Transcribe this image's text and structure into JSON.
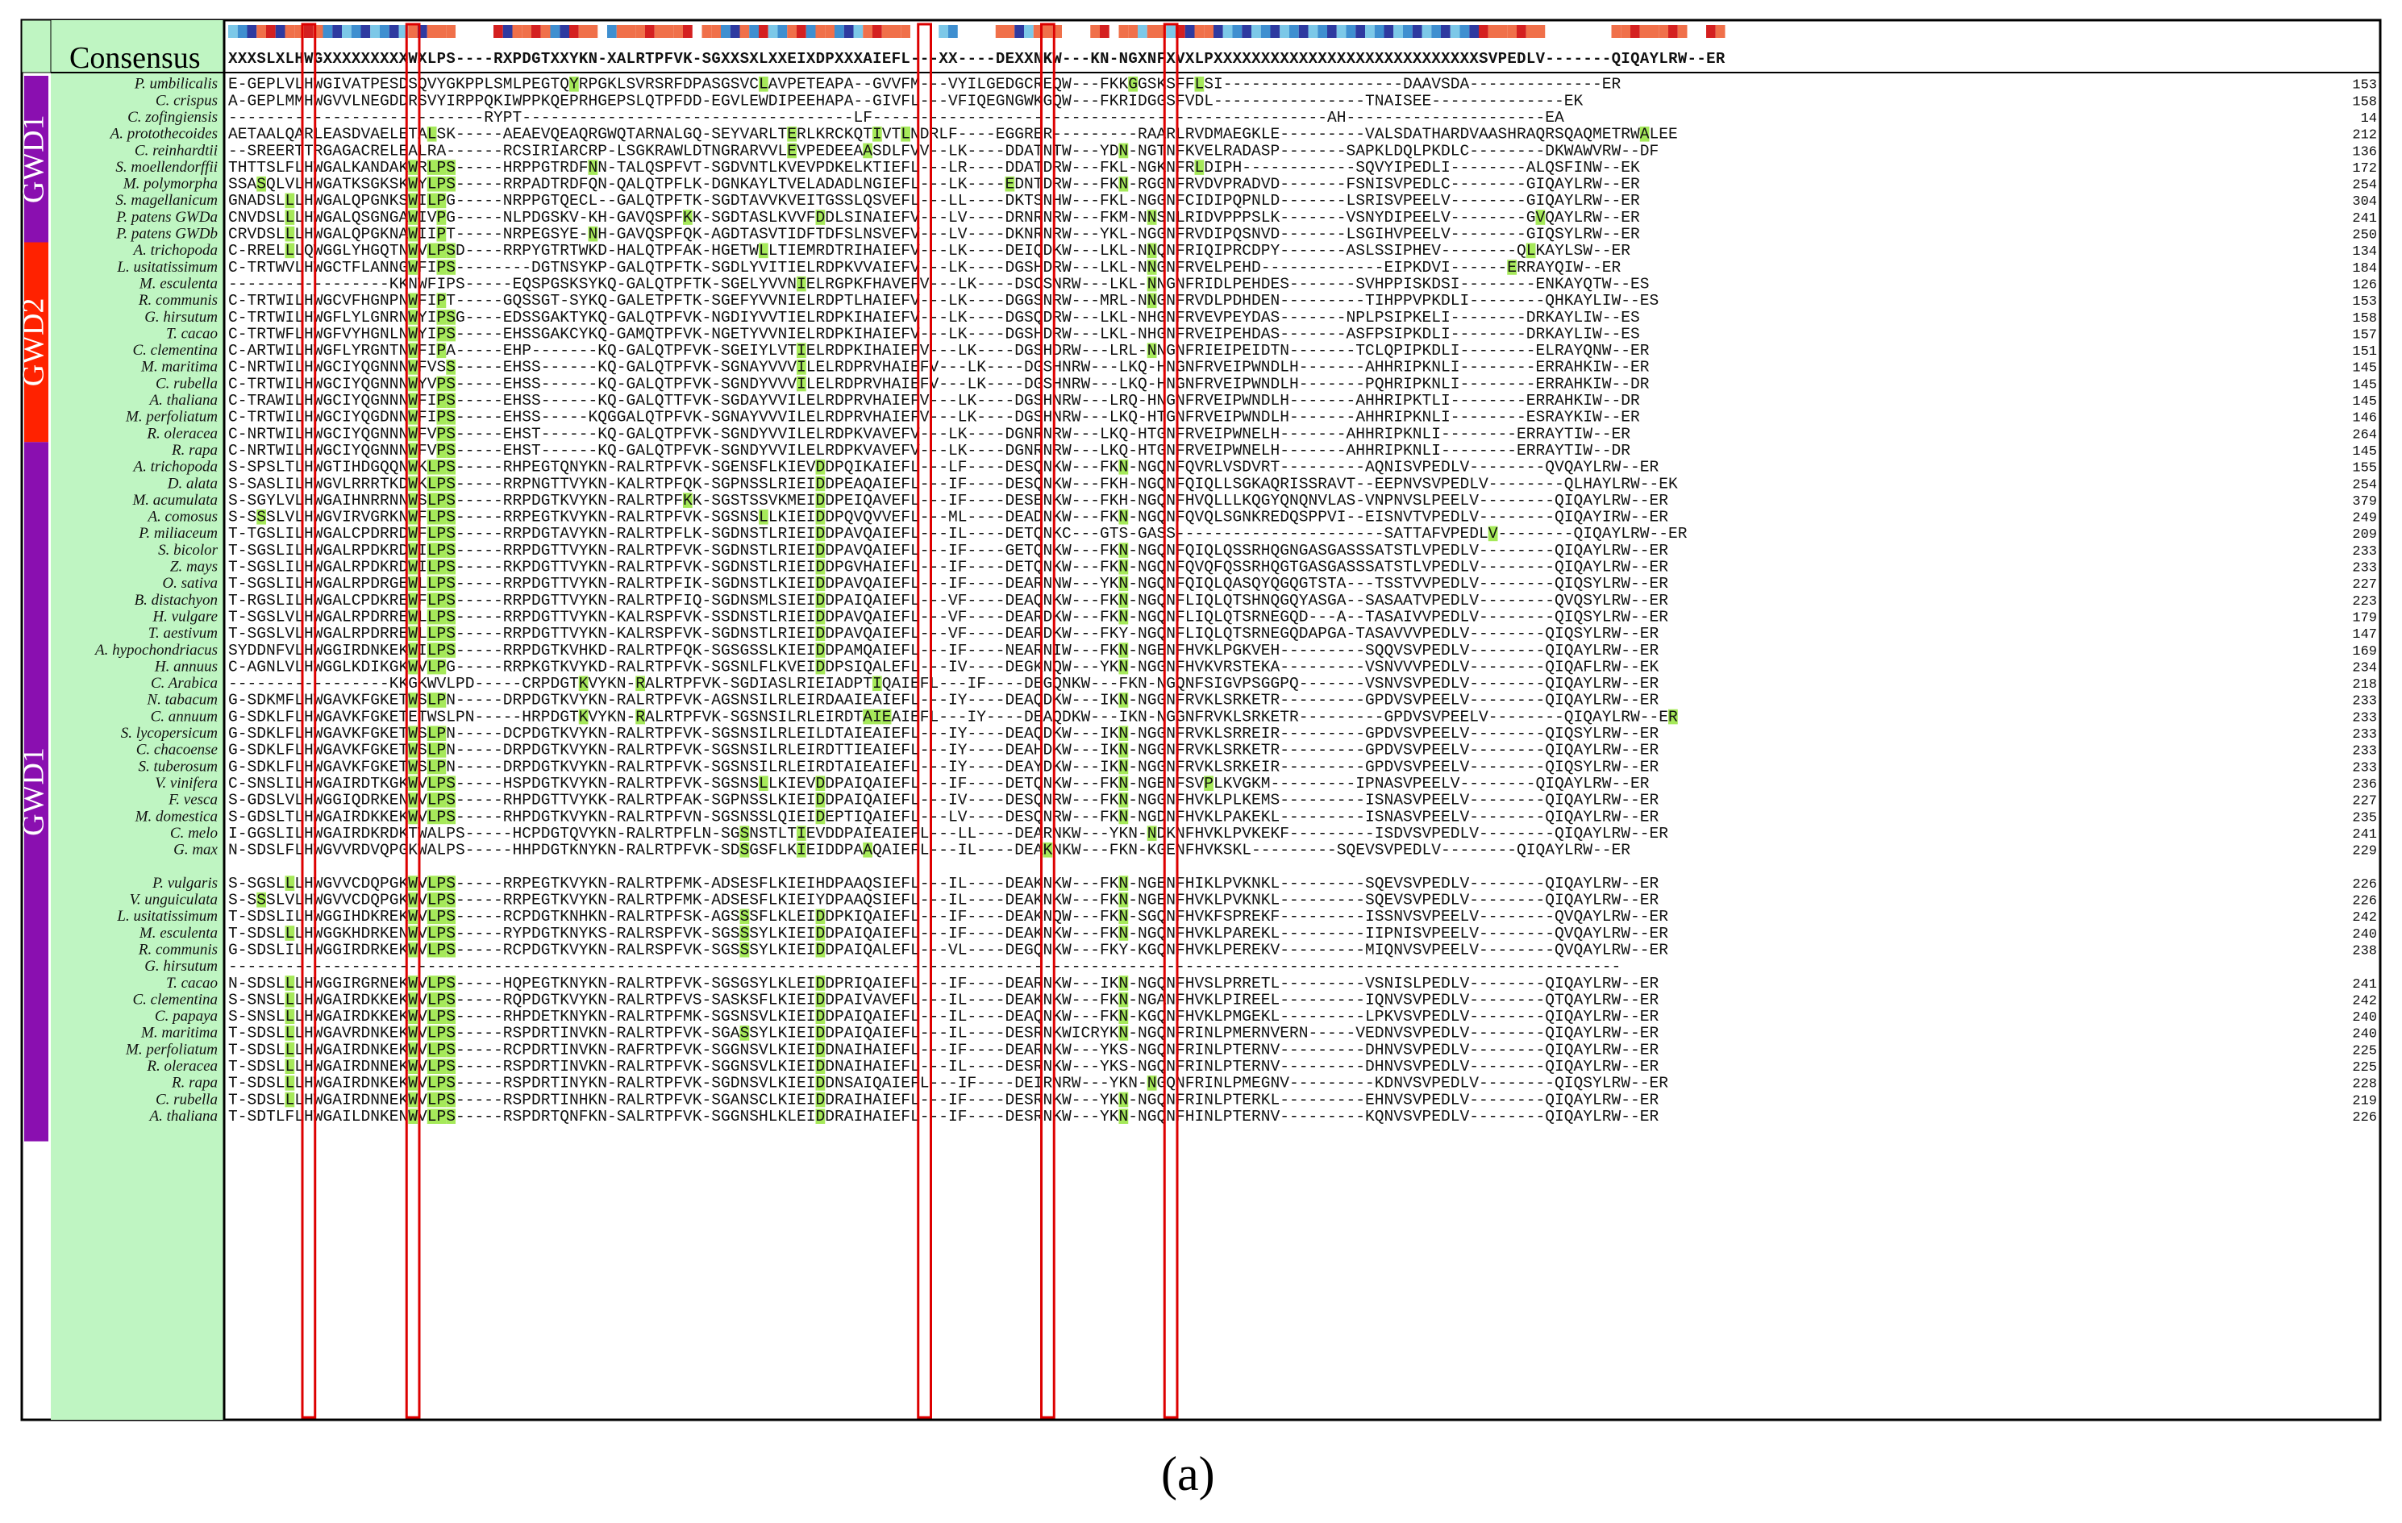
{
  "figure": {
    "consensus_label": "Consensus",
    "consensus_sequence": "XXXSLXLHWGXXXXXXXXXWXLPS----RXPDGTXXYKN-XALRTPFVK-SGXXSXLXXEIXDPXXXAIEFL---XX----DEXXNKW---KN-NGXNFXVXLPXXXXXXXXXXXXXXXXXXXXXXXXXXXXSVPEDLV-------QIQAYLRW--ER",
    "panel_label": "(a)",
    "groups": [
      {
        "label": "GWD1",
        "color": "#8a0fb0",
        "first_row": 0,
        "last_row": 9
      },
      {
        "label": "GWD2",
        "color": "#ff2200",
        "first_row": 10,
        "last_row": 21
      },
      {
        "label": "GWD1",
        "color": "#8a0fb0",
        "first_row": 22,
        "last_row": 63
      }
    ],
    "colors": {
      "species_panel": "#bff5c2",
      "highlight": "#a6e95a",
      "conservation_box": "#dd0000",
      "dark_blue": "#2e3aa0",
      "light_blue": "#7cc8e8",
      "mid_blue": "#3f8fd0",
      "orange": "#f0704a",
      "red": "#d42020"
    },
    "rows": [
      {
        "species": "P. umbilicalis",
        "seq": "E-GEPLVLHWGIVATPESDSQVYGKPPLSMLPEGTQYRPGKLSVRSRFDPASGSVCLAVPETEAPA--GVVFM---VYILGEDGCREQW---FKKGGSKSFFLSI-------------------DAAVSDA--------------ER",
        "len": "153"
      },
      {
        "species": "C. crispus",
        "seq": "A-GEPLMMHWGVVLNEGDDRSVYIRPPQKIWPPKQEPRHGEPSLQTPFDD-EGVLEWDIPEEHAPA--GIVFL---VFIQEGNGWKGQW---FKRIDGGSFVDL----------------TNAISEE--------------EK",
        "len": "158"
      },
      {
        "species": "C. zofingiensis",
        "seq": "---------------------------RYPT-----------------------------------LF------------------------------------------------AH---------------------EA",
        "len": "14"
      },
      {
        "species": "A. protothecoides",
        "seq": "AETAALQARLEASDVAELETALSK-----AEAEVQEAQRGWQTARNALGQ-SEYVARLTERLKRCKQTIVTLNDRLF----EGGRER---------RAARLRVDMAEGKLE---------VALSDATHARDVAASHRAQRSQAQMETRWALEE",
        "len": "212"
      },
      {
        "species": "C. reinhardtii",
        "seq": "--SREERTTRGAGACRELEALRA------RCSIRIARCRP-LSGKRAWLDTNGRARVVLEVPEDEEAASDLFVV--LK----DDATNTW---YDN-NGTNFKVELRADASP-------SAPKLDQLPKDLC--------DKWAWVRW--DF",
        "len": "136"
      },
      {
        "species": "S. moellendorffii",
        "seq": "THTTSLFLHWGALKANDAKWRLPS-----HRPPGTRDFNN-TALQSPFVT-SGDVNTLKVEVPDKELKTIEFL---LR----DDATDRW---FKL-NGKNFRLDIPH------------SQVYIPEDLI--------ALQSFINW--EK",
        "len": "172"
      },
      {
        "species": "M. polymorpha",
        "seq": "SSASQLVLHWGATKSGKSKWYLPS-----RRPADTRDFQN-QALQTPFLK-DGNKAYLTVELADADLNGIEFL---LK----EDNTDRW---FKN-RGGNFRVDVPRADVD-------FSNISVPEDLC--------GIQAYLRW--ER",
        "len": "254"
      },
      {
        "species": "S. magellanicum",
        "seq": "GNADSLLLHWGALQPGNKSWILPG-----NRPPGTQECL--GALQTPFTK-SGDTAVVKVEITGSSLQSVEFL---LL----DKTSNHW---FKL-NGGNFCIDIPQPNLD-------LSRISVPEELV--------GIQAYLRW--ER",
        "len": "304"
      },
      {
        "species": "P. patens GWDa",
        "seq": "CNVDSLLLHWGALQSGNGAWIVPG-----NLPDGSKV-KH-GAVQSPFKK-SGDTASLKVVFDDLSINAIEFV---LV----DRNRNRW---FKM-NNSNLRIDVPPPSLK-------VSNYDIPEELV--------GVQAYLRW--ER",
        "len": "241"
      },
      {
        "species": "P. patens GWDb",
        "seq": "CRVDSLLLHWGALQPGKNAWIIPT-----NRPEGSYE-NH-GAVQSPFQK-AGDTASVTIDFTDFSLNSVEFV---LV----DKNRNRW---YKL-NGGNFRVDIPQSNVD-------LSGIHVPEELV--------GIQSYLRW--ER",
        "len": "250"
      },
      {
        "species": "A. trichopoda",
        "seq": "C-RRELLLQWGGLYHGQTNWVLPSD----RRPYGTRTWKD-HALQTPFAK-HGETWLLTIEMRDTRIHAIEFV---LK----DEIQDKW---LKL-NNQNFRIQIPRCDPY-------ASLSSIPHEV--------QLKAYLSW--ER",
        "len": "134"
      },
      {
        "species": "L. usitatissimum",
        "seq": "C-TRTWVLHWGCTFLANNGWFIPS--------DGTNSYKP-GALQTPFTK-SGDLYVITIELRDPKVVAIEFV---LK----DGSHDRW---LKL-NNGNFRVELPEHD-------------EIPKDVI------ERRAYQIW--ER",
        "len": "184"
      },
      {
        "species": "M. esculenta",
        "seq": "-----------------KKNWFIPS-----EQSPGSKSYKQ-GALQTPFTK-SGELYVVNIELRGPKFHAVEFV---LK----DSCSNRW---LKL-NNGNFRIDLPEHDES-------SVHPPISKDSI--------ENKAYQTW--ES",
        "len": "126"
      },
      {
        "species": "R. communis",
        "seq": "C-TRTWILHWGCVFHGNPNWFIPT-----GQSSGT-SYKQ-GALETPFTK-SGEFYVVNIELRDPTLHAIEFV---LK----DGGSNRW---MRL-NNGNFRVDLPDHDEN---------TIHPPVPKDLI--------QHKAYLIW--ES",
        "len": "153"
      },
      {
        "species": "G. hirsutum",
        "seq": "C-TRTWILHWGFLYLGNRNWYIPSG----EDSSGAKTYKQ-GALQTPFVK-NGDIYVVTIELRDPKIHAIEFV---LK----DGSQDRW---LKL-NHGNFRVEVPEYDAS-------NPLPSIPKELI--------DRKAYLIW--ES",
        "len": "158"
      },
      {
        "species": "T. cacao",
        "seq": "C-TRTWFLHWGFVYHGNLNWYIPS-----EHSSGAKCYKQ-GAMQTPFVK-NGETYVVNIELRDPKIHAIEFV---LK----DGSHDRW---LKL-NHGNFRVEIPEHDAS-------ASFPSIPKDLI--------DRKAYLIW--ES",
        "len": "157"
      },
      {
        "species": "C. clementina",
        "seq": "C-ARTWILHWGFLYRGNTNWFIPA-----EHP-------KQ-GALQTPFVK-SGEIYLVTIELRDPKIHAIEFV---LK----DGSHDRW---LRL-NNGNFRIEIPEIDTN-------TCLQPIPKDLI--------ELRAYQNW--ER",
        "len": "151"
      },
      {
        "species": "M. maritima",
        "seq": "C-NRTWILHWGCIYQGNNNWFVSS-----EHSS------KQ-GALQTPFVK-SGNAYVVVILELRDPRVHAIEFV---LK----DGSHNRW---LKQ-HNGNFRVEIPWNDLH-------AHHRIPKNLI--------ERRAHKIW--ER",
        "len": "145"
      },
      {
        "species": "C. rubella",
        "seq": "C-TRTWILHWGCIYQGNNNWYVPS-----EHSS------KQ-GALQTPFVK-SGNDYVVVILELRDPRVHAIEFV---LK----DGSHNRW---LKQ-HNGNFRVEIPWNDLH-------PQHRIPKNLI--------ERRAHKIW--DR",
        "len": "145"
      },
      {
        "species": "A. thaliana",
        "seq": "C-TRAWILHWGCIYQGNNNWFIPS-----EHSS------KQ-GALQTTFVK-SGDAYVVILELRDPRVHAIEFV---LK----DGSHNRW---LRQ-HNGNFRVEIPWNDLH-------AHHRIPKTLI--------ERRAHKIW--DR",
        "len": "145"
      },
      {
        "species": "M. perfoliatum",
        "seq": "C-TRTWILHWGCIYQGDNNWFIPS-----EHSS-----KQGGALQTPFVK-SGNAYVVVILELRDPRVHAIEFV---LK----DGSHNRW---LKQ-HTGNFRVEIPWNDLH-------AHHRIPKNLI--------ESRAYKIW--ER",
        "len": "146"
      },
      {
        "species": "R. oleracea",
        "seq": "C-NRTWILHWGCIYQGNNNWFVPS-----EHST------KQ-GALQTPFVK-SGNDYVVILELRDPKVAVEFV---LK----DGNRNRW---LKQ-HTGNFRVEIPWNELH-------AHHRIPKNLI--------ERRAYTIW--ER",
        "len": "264"
      },
      {
        "species": "R. rapa",
        "seq": "C-NRTWILHWGCIYQGNNNWFVPS-----EHST------KQ-GALQTPFVK-SGNDYVVILELRDPKVAVEFV---LK----DGNRNRW---LKQ-HTGNFRVEIPWNELH-------AHHRIPKNLI--------ERRAYTIW--DR",
        "len": "145"
      },
      {
        "species": "A. trichopoda",
        "seq": "S-SPSLTLHWGTIHDGQQNWKLPS-----RHPEGTQNYKN-RALRTPFVK-SGENSFLKIEVDDPQIKAIEFL---LF----DESQNKW---FKN-NGQNFQVRLVSDVRT---------AQNISVPEDLV--------QVQAYLRW--ER",
        "len": "155"
      },
      {
        "species": "D. alata",
        "seq": "S-SASLILHWGVLRRRTKDWKLPS-----RRPNGTTVYKN-KALRTPFQK-SGPNSSLRIEIDDPEAQAIEFL---IF----DESQNKW---FKH-NGQNFQIQLLSGKAQRISSRAVT--EEPNVSVPEDLV--------QLHAYLRW--EK",
        "len": "254"
      },
      {
        "species": "M. acumulata",
        "seq": "S-SGYLVLHWGAIHNRRNNWSLPS-----RRPDGTKVYKN-RALRTPFKK-SGSTSSVKMEIDDPEIQAVEFL---IF----DESENKW---FKH-NGQNFHVQLLLKQGYQNQNVLAS-VNPNVSLPEELV--------QIQAYLRW--ER",
        "len": "379"
      },
      {
        "species": "A. comosus",
        "seq": "S-SSSLVLHWGVIRVGRKNWFLPS-----RRPEGTKVYKN-RALRTPFVK-SGSNSLLKIEIDDPQVQVVEFL---ML----DEADNKW---FKN-NGQNFQVQLSGNKREDQSPPVI--EISNVTVPEDLV--------QIQAYIRW--ER",
        "len": "249"
      },
      {
        "species": "P. miliaceum",
        "seq": "T-TGSLILHWGALCPDRRDWFLPS-----RRPDGTAVYKN-RALRTPFLK-SGDNSTLRIEIDDPAVQAIEFL---IL----DETQNKC---GTS-GASS----------------------SATTAFVPEDLV--------QIQAYLRW--ER",
        "len": "209"
      },
      {
        "species": "S. bicolor",
        "seq": "T-SGSLILHWGALRPDKRDWILPS-----RRPDGTTVYKN-RALRTPFVK-SGDNSTLRIEIDDPAVQAIEFL---IF----GETQNKW---FKN-NGQNFQIQLQSSRHQGNGASGASSSATSTLVPEDLV--------QIQAYLRW--ER",
        "len": "233"
      },
      {
        "species": "Z. mays",
        "seq": "T-SGSLILHWGALRPDKRDWILPS-----RKPDGTTVYKN-RALRTPFVK-SGDNSTLRIEIDDPGVHAIEFL---IF----DETQNKW---FKN-NGQNFQVQFQSSRHQGTGASGASSSATSTLVPEDLV--------QIQAYLRW--ER",
        "len": "233"
      },
      {
        "species": "O. sativa",
        "seq": "T-SGSLILHWGALRPDRGEWLLPS-----RRPDGTTVYKN-RALRTPFIK-SGDNSTLKIEIDDPAVQAIEFL---IF----DEARNNW---YKN-NGQNFQIQLQASQYQGQGTSTA---TSSTVVPEDLV--------QIQSYLRW--ER",
        "len": "227"
      },
      {
        "species": "B. distachyon",
        "seq": "T-RGSLILHWGALCPDKREWFLPS-----RRPDGTTVYKN-RALRTPFIQ-SGDNSMLSIEIDDPAIQAIEFL---VF----DEAQNKW---FKN-NGQNFLIQLQTSHNQGQYASGA--SASAATVPEDLV--------QVQSYLRW--ER",
        "len": "223"
      },
      {
        "species": "H. vulgare",
        "seq": "T-SGSLVLHWGALRPDRREWLLPS-----RRPDGTTVYKN-KALRSPFVK-SSDNSTLRIEIDDPAVQAIEFL---VF----DEARDKW---FKN-NGQNFLIQLQTSRNEGQD---A--TASAIVVPEDLV--------QIQSYLRW--ER",
        "len": "179"
      },
      {
        "species": "T. aestivum",
        "seq": "T-SGSLVLHWGALRPDRREWLLPS-----RRPDGTTVYKN-KALRSPFVK-SGDNSTLRIEIDDPAVQAIEFL---VF----DEARDKW---FKY-NGQNFLIQLQTSRNEGQDAPGA-TASAVVVPEDLV--------QIQSYLRW--ER",
        "len": "147"
      },
      {
        "species": "A. hypochondriacus",
        "seq": "SYDDNFVLHWGGIRDNKEKWILPS-----RRPDGTKVHKD-RALRTPFQK-SGSGSSLKIEIDDPAMQAIEFL---IF----NEARNIW---FKN-NGENFHVKLPGKVEH---------SQQVSVPEDLV--------QIQAYLRW--ER",
        "len": "169"
      },
      {
        "species": "H. annuus",
        "seq": "C-AGNLVLHWGGLKDIKGKWVLPG-----RRPKGTKVYKD-RALRTPFVK-SGSNLFLKVEIDDPSIQALEFL---IV----DEGKNQW---YKN-NGGNFHVKVRSTEKA---------VSNVVVPEDLV--------QIQAFLRW--EK",
        "len": "234"
      },
      {
        "species": "C. Arabica",
        "seq": "-----------------KKGKWVLPD-----CRPDGTKVYKN-RALRTPFVK-SGDIASLRIEIADPTIQAIEFL---IF----DEGQNKW---FKN-NGQNFSIGVPSGGPQ-------VSNVSVPEDLV--------QIQAYLRW--ER",
        "len": "218"
      },
      {
        "species": "N. tabacum",
        "seq": "G-SDKMFLHWGAVKFGKETWSLPN-----DRPDGTKVYKN-RALRTPFVK-AGSNSILRLEIRDAAIEAIEFL---IY----DEAQDKW---IKN-NGGNFRVKLSRKETR---------GPDVSVPEELV--------QIQAYLRW--ER",
        "len": "233"
      },
      {
        "species": "C. annuum",
        "seq": "G-SDKLFLHWGAVKFGKETETWSLPN-----HRPDGTKVYKN-RALRTPFVK-SGSNSILRLEIRDTAIEAIEFL---IY----DEAQDKW---IKN-NGGNFRVKLSRKETR---------GPDVSVPEELV--------QIQAYLRW--ER",
        "len": "233"
      },
      {
        "species": "S. lycopersicum",
        "seq": "G-SDKLFLHWGAVKFGKETWSLPN-----DCPDGTKVYKN-RALRTPFVK-SGSNSILRLEILDTAIEAIEFL---IY----DEAQDKW---IKN-NGGNFRVKLSRREIR---------GPDVSVPEELV--------QIQSYLRW--ER",
        "len": "233"
      },
      {
        "species": "C. chacoense",
        "seq": "G-SDKLFLHWGAVKFGKETWSLPN-----DRPDGTKVYKN-RALRTPFVK-SGSNSILRLEIRDTTIEAIEFL---IY----DEAHDKW---IKN-NGGNFRVKLSRKETR---------GPDVSVPEELV--------QIQAYLRW--ER",
        "len": "233"
      },
      {
        "species": "S. tuberosum",
        "seq": "G-SDKLFLHWGAVKFGKETWSLPN-----DRPDGTKVYKN-RALRTPFVK-SGSNSILRLEIRDTAIEAIEFL---IY----DEAYDKW---IKN-NGGNFRVKLSRKEIR---------GPDVSVPEELV--------QIQSYLRW--ER",
        "len": "233"
      },
      {
        "species": "V. vinifera",
        "seq": "C-SNSLILHWGAIRDTKGKWVLPS-----HSPDGTKVYKN-RALRTPFVK-SGSNSLLKIEVDDPAIQAIEFL---IF----DETQNKW---FKN-NGENFSVPLKVGKM---------IPNASVPEELV--------QIQAYLRW--ER",
        "len": "236"
      },
      {
        "species": "F. vesca",
        "seq": "S-GDSLVLHWGGIQDRKENWVLPS-----RHPDGTTVYKK-RALRTPFAK-SGPNSSLKIEIDDPAIQAIEFL---IV----DESQNRW---FKN-NGGNFHVKLPLKEMS---------ISNASVPEELV--------QIQAYLRW--ER",
        "len": "227"
      },
      {
        "species": "M. domestica",
        "seq": "S-GDSLTLHWGAIRDKKEKWVLPS-----RHPDGTKVYKN-RALRTPFVN-SGSNSSLQIEIDEPTIQAIEFL---LV----DESQNRW---FKN-NGDNFHVKLPAKEKL---------ISNASVPEELV--------QIQAYLRW--ER",
        "len": "235"
      },
      {
        "species": "C. melo",
        "seq": "I-GGSLILHWGAIRDKRDKTWALPS-----HCPDGTQVYKN-RALRTPFLN-SGSNSTLTIEVDDPAIEAIEFL---LL----DEARNKW---YKN-NDKNFHVKLPVKEKF---------ISDVSVPEDLV--------QIQAYLRW--ER",
        "len": "241"
      },
      {
        "species": "G. max",
        "seq": "N-SDSLFLHWGVVRDVQPGKWALPS-----HHPDGTKNYKN-RALRTPFVK-SDSGSFLKIEIDDPAAQAIEFL---IL----DEAKNKW---FKN-KGENFHVKSKL---------SQEVSVPEDLV--------QIQAYLRW--ER",
        "len": "229"
      },
      {
        "species": "",
        "seq": "",
        "len": ""
      },
      {
        "species": "P. vulgaris",
        "seq": "S-SGSLLLHWGVVCDQPGKWVLPS-----RRPEGTKVYKN-RALRTPFMK-ADSESFLKIEIHDPAAQSIEFL---IL----DEAKNKW---FKN-NGENFHIKLPVKNKL---------SQEVSVPEDLV--------QIQAYLRW--ER",
        "len": "226"
      },
      {
        "species": "V. unguiculata",
        "seq": "S-SSSLVLHWGVVCDQPGKWVLPS-----RRPEGTKVYKN-RALRTPFMK-ADSESFLKIEIYDPAAQSIEFL---IL----DEAKNKW---FKN-NGENFHVKLPVKNKL---------SQEVSVPEDLV--------QIQAYLRW--ER",
        "len": "226"
      },
      {
        "species": "L. usitatissimum",
        "seq": "T-SDSLILHWGGIHDKREKWVLPS-----RCPDGTKNHKN-RALRTPFSK-AGSSSFLKLEIDDPKIQAIEFL---IF----DEAKNQW---FKN-SGQNFHVKFSPREKF---------ISSNVSVPEELV--------QVQAYLRW--ER",
        "len": "242"
      },
      {
        "species": "M. esculenta",
        "seq": "T-SDSLLLHWGGKHDRKENWVLPS-----RYPDGTKNYKS-RALRSPFVK-SGSSSYLKIEIDDPAIQAIEFL---IF----DEAKNKW---FKN-NGQNFHVKLPAREKL---------IIPNISVPEELV--------QVQAYLRW--ER",
        "len": "240"
      },
      {
        "species": "R. communis",
        "seq": "G-SDSLILHWGGIRDRKEKWVLPS-----RCPDGTKVYKN-RALRSPFVK-SGSSSYLKIEIDDPAIQALEFL---VL----DEGQNKW---FKY-KGQNFHVKLPEREKV---------MIQNVSVPEELV--------QVQAYLRW--ER",
        "len": "238"
      },
      {
        "species": "G. hirsutum",
        "seq": "---------------------------------------------------------------------------------------------------------------------------------------------------",
        "len": ""
      },
      {
        "species": "T. cacao",
        "seq": "N-SDSLLLHWGGIRGRNEKWVLPS-----HQPEGTKNYKN-RALRTPFVK-SGSGSYLKLEIDDPRIQAIEFL---IF----DEARNKW---IKN-NGQNFHVSLPRRETL---------VSNISLPEDLV--------QIQAYLRW--ER",
        "len": "241"
      },
      {
        "species": "C. clementina",
        "seq": "S-SNSLLLHWGAIRDKKEKWVLPS-----RQPDGTKVYKN-RALRTPFVS-SASKSFLKIEIDDPAIVAVEFL---IL----DEAKNKW---FKN-NGANFHVKLPIREEL---------IQNVSVPEDLV--------QTQAYLRW--ER",
        "len": "242"
      },
      {
        "species": "C. papaya",
        "seq": "S-SNSLLLHWGAIRDKKEKWVLPS-----RHPDETKNYKN-RALRTPFMK-SGSNSVLKIEIDDPAIQAIEFL---IL----DEAQNKW---FKN-KGQNFHVKLPMGEKL---------LPKVSVPEDLV--------QIQAYLRW--ER",
        "len": "240"
      },
      {
        "species": "M. maritima",
        "seq": "T-SDSLLLHWGAVRDNKEKWVLPS-----RSPDRTINVKN-RALRTPFVK-SGASSYLKIEIDDPAIQAIEFL---IL----DESRNKWICRYKN-NGQNFRINLPMERNVERN-----VEDNVSVPEDLV--------QIQAYLRW--ER",
        "len": "240"
      },
      {
        "species": "M. perfoliatum",
        "seq": "T-SDSLLLHWGAIRDNKEKWVLPS-----RCPDRTINVKN-RAFRTPFVK-SGGNSVLKIEIDDNAIHAIEFL---IF----DEARNKW---YKS-NGQNFRINLPTERNV---------DHNVSVPEDLV--------QIQAYLRW--ER",
        "len": "225"
      },
      {
        "species": "R. oleracea",
        "seq": "T-SDSLLLHWGAIRDNNEKWVLPS-----RSPDRTINVKN-RALRTPFVK-SGGNSVLKIEIDDNAIHAIEFL---IL----DESRNKW---YKS-NGQNFRINLPTERNV---------DHNVSVPEDLV--------QIQAYLRW--ER",
        "len": "225"
      }
    ],
    "rows_tail": [
      {
        "species": "R. rapa",
        "seq": "T-SDSLLLHWGAIRDNKEKWVLPS-----RSPDRTINYKN-RALRTPFVK-SGDNSVLKIEIDDNSAIQAIEFL---IF----DEIRNRW---YKN-NGQNFRINLPMEGNV---------KDNVSVPEDLV--------QIQSYLRW--ER",
        "len": "228"
      },
      {
        "species": "C. rubella",
        "seq": "T-SDSLLLHWGAIRDNNEKWVLPS-----RSPDRTINHKN-RALRTPFVK-SGANSCLKIEIDDRAIHAIEFL---IF----DESRNKW---YKN-NGQNFRINLPTERKL---------EHNVSVPEDLV--------QIQAYLRW--ER",
        "len": "219"
      },
      {
        "species": "A. thaliana",
        "seq": "T-SDTLFLHWGAILDNKENWVLPS-----RSPDRTQNFKN-SALRTPFVK-SGGNSHLKLEIDDRAIHAIEFL---IF----DESRNKW---YKN-NGQNFHINLPTERNV---------KQNVSVPEDLV--------QIQAYLRW--ER",
        "len": "226"
      }
    ]
  }
}
